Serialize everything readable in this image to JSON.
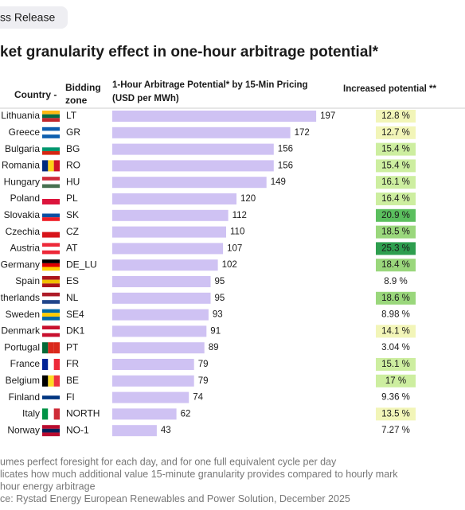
{
  "badge": "ss Release",
  "chart_data": {
    "type": "bar",
    "title": "ket granularity effect in one-hour arbitrage potential*",
    "category_header": "Country -",
    "zone_header": [
      "Bidding",
      "zone"
    ],
    "value_header": [
      "1-Hour Arbitrage Potential* by 15-Min Pricing",
      "(USD per MWh)"
    ],
    "increase_header": "Increased potential **",
    "categories": [
      "Lithuania",
      "Greece",
      "Bulgaria",
      "Romania",
      "Hungary",
      "Poland",
      "Slovakia",
      "Czechia",
      "Austria",
      "Germany",
      "Spain",
      "therlands",
      "Sweden",
      "Denmark",
      "Portugal",
      "France",
      "Belgium",
      "Finland",
      "Italy",
      "Norway"
    ],
    "zones": [
      "LT",
      "GR",
      "BG",
      "RO",
      "HU",
      "PL",
      "SK",
      "CZ",
      "AT",
      "DE_LU",
      "ES",
      "NL",
      "SE4",
      "DK1",
      "PT",
      "FR",
      "BE",
      "FI",
      "NORTH",
      "NO-1"
    ],
    "values": [
      197,
      172,
      156,
      156,
      149,
      120,
      112,
      110,
      107,
      102,
      95,
      95,
      93,
      91,
      89,
      79,
      79,
      74,
      62,
      43
    ],
    "color": "#cfc2f3",
    "increase": {
      "values": [
        12.8,
        12.7,
        15.4,
        15.4,
        16.1,
        16.4,
        20.9,
        18.5,
        25.3,
        18.4,
        8.9,
        18.6,
        8.98,
        14.1,
        3.04,
        15.1,
        17,
        9.36,
        13.5,
        7.27
      ],
      "value_labels": [
        "12.8 %",
        "12.7 %",
        "15.4 %",
        "15.4 %",
        "16.1 %",
        "16.4 %",
        "20.9 %",
        "18.5 %",
        "25.3 %",
        "18.4 %",
        "8.9 %",
        "18.6 %",
        "8.98 %",
        "14.1 %",
        "3.04 %",
        "15.1 %",
        "17 %",
        "9.36 %",
        "13.5 %",
        "7.27 %"
      ]
    }
  },
  "footnotes": [
    "umes perfect foresight for each day, and for one full equivalent cycle per day",
    "licates how much additional value 15-minute granularity provides compared to hourly mark",
    "hour energy arbitrage",
    "ce: Rystad Energy European Renewables and Power Solution, December 2025"
  ]
}
